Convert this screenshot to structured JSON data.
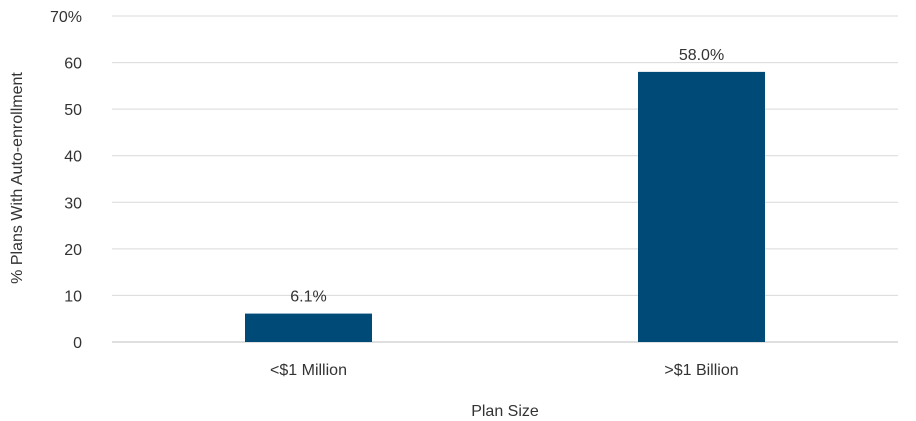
{
  "chart_data": {
    "type": "bar",
    "categories": [
      "<$1 Million",
      ">$1 Billion"
    ],
    "values": [
      6.1,
      58.0
    ],
    "data_labels": [
      "6.1%",
      "58.0%"
    ],
    "xlabel": "Plan Size",
    "ylabel": "% Plans With Auto-enrollment",
    "ylim": [
      0,
      70
    ],
    "yticks": [
      0,
      10,
      20,
      30,
      40,
      50,
      60,
      70
    ],
    "ytick_labels": [
      "0",
      "10",
      "20",
      "30",
      "40",
      "50",
      "60",
      "70%"
    ],
    "grid": true,
    "bar_color": "#004a78"
  }
}
